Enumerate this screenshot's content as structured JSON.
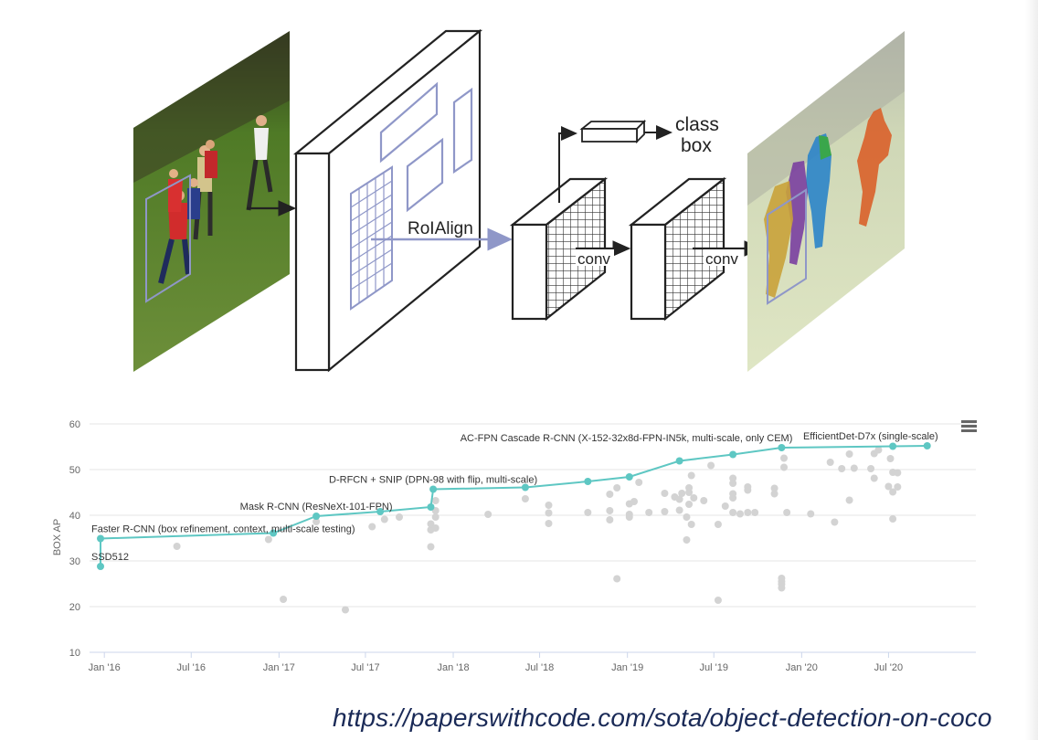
{
  "diagram": {
    "label_roialign": "RoIAlign",
    "label_conv_1": "conv",
    "label_conv_2": "conv",
    "label_class": "class",
    "label_box": "box"
  },
  "chart_data": {
    "type": "scatter",
    "ylabel": "BOX AP",
    "ylim": [
      10,
      60
    ],
    "yticks": [
      "10",
      "20",
      "30",
      "40",
      "50",
      "60"
    ],
    "xlim": [
      "2015-12-01",
      "2020-12-31"
    ],
    "xticks": [
      {
        "date": "2016-01-01",
        "label": "Jan '16"
      },
      {
        "date": "2016-07-01",
        "label": "Jul '16"
      },
      {
        "date": "2017-01-01",
        "label": "Jan '17"
      },
      {
        "date": "2017-07-01",
        "label": "Jul '17"
      },
      {
        "date": "2018-01-01",
        "label": "Jan '18"
      },
      {
        "date": "2018-07-01",
        "label": "Jul '18"
      },
      {
        "date": "2019-01-01",
        "label": "Jan '19"
      },
      {
        "date": "2019-07-01",
        "label": "Jul '19"
      },
      {
        "date": "2020-01-01",
        "label": "Jan '20"
      },
      {
        "date": "2020-07-01",
        "label": "Jul '20"
      }
    ],
    "grid": true,
    "sota_color": "#5ec7c3",
    "other_color": "#d3d3d3",
    "sota": [
      {
        "date": "2015-12-24",
        "value": 28.8
      },
      {
        "date": "2015-12-24",
        "value": 34.9
      },
      {
        "date": "2016-12-20",
        "value": 36.1
      },
      {
        "date": "2017-03-20",
        "value": 39.8
      },
      {
        "date": "2017-08-01",
        "value": 40.8
      },
      {
        "date": "2017-11-15",
        "value": 41.8
      },
      {
        "date": "2017-11-20",
        "value": 45.7
      },
      {
        "date": "2018-06-01",
        "value": 46.1
      },
      {
        "date": "2018-10-10",
        "value": 47.4
      },
      {
        "date": "2019-01-05",
        "value": 48.4
      },
      {
        "date": "2019-04-20",
        "value": 51.9
      },
      {
        "date": "2019-08-10",
        "value": 53.3
      },
      {
        "date": "2019-11-20",
        "value": 54.8
      },
      {
        "date": "2020-07-10",
        "value": 55.1
      },
      {
        "date": "2020-09-20",
        "value": 55.2
      }
    ],
    "annotations": [
      {
        "date": "2015-12-24",
        "value": 28.8,
        "text": "SSD512",
        "align": "start"
      },
      {
        "date": "2015-12-24",
        "value": 34.9,
        "text": "Faster R-CNN (box refinement, context, multi-scale testing)",
        "align": "start"
      },
      {
        "date": "2017-03-20",
        "value": 39.8,
        "text": "Mask R-CNN (ResNeXt-101-FPN)",
        "align": "middle"
      },
      {
        "date": "2017-11-20",
        "value": 45.7,
        "text": "D-RFCN + SNIP (DPN-98 with flip, multi-scale)",
        "align": "middle"
      },
      {
        "date": "2019-11-20",
        "value": 54.8,
        "text": "AC-FPN Cascade R-CNN (X-152-32x8d-FPN-IN5k, multi-scale, only CEM)",
        "align": "end"
      },
      {
        "date": "2020-09-20",
        "value": 55.2,
        "text": "EfficientDet-D7x (single-scale)",
        "align": "end"
      }
    ],
    "others": [
      {
        "date": "2016-06-01",
        "value": 33.2
      },
      {
        "date": "2016-12-10",
        "value": 34.7
      },
      {
        "date": "2017-01-10",
        "value": 21.6
      },
      {
        "date": "2017-05-20",
        "value": 19.3
      },
      {
        "date": "2017-03-20",
        "value": 38.6
      },
      {
        "date": "2017-07-15",
        "value": 37.5
      },
      {
        "date": "2017-08-10",
        "value": 39.1
      },
      {
        "date": "2017-09-10",
        "value": 39.6
      },
      {
        "date": "2017-11-15",
        "value": 33.1
      },
      {
        "date": "2017-11-15",
        "value": 36.8
      },
      {
        "date": "2017-11-15",
        "value": 38.1
      },
      {
        "date": "2017-11-25",
        "value": 37.2
      },
      {
        "date": "2017-11-25",
        "value": 39.6
      },
      {
        "date": "2017-11-25",
        "value": 41.0
      },
      {
        "date": "2017-11-25",
        "value": 43.2
      },
      {
        "date": "2018-03-15",
        "value": 40.2
      },
      {
        "date": "2018-06-01",
        "value": 43.6
      },
      {
        "date": "2018-07-20",
        "value": 38.2
      },
      {
        "date": "2018-07-20",
        "value": 40.5
      },
      {
        "date": "2018-07-20",
        "value": 42.2
      },
      {
        "date": "2018-10-10",
        "value": 40.6
      },
      {
        "date": "2018-11-25",
        "value": 39.0
      },
      {
        "date": "2018-11-25",
        "value": 41.0
      },
      {
        "date": "2018-11-25",
        "value": 44.6
      },
      {
        "date": "2018-12-10",
        "value": 26.1
      },
      {
        "date": "2018-12-10",
        "value": 46.0
      },
      {
        "date": "2019-01-05",
        "value": 39.6
      },
      {
        "date": "2019-01-05",
        "value": 40.2
      },
      {
        "date": "2019-01-05",
        "value": 42.5
      },
      {
        "date": "2019-01-15",
        "value": 43.0
      },
      {
        "date": "2019-01-25",
        "value": 47.2
      },
      {
        "date": "2019-02-15",
        "value": 40.6
      },
      {
        "date": "2019-03-20",
        "value": 40.8
      },
      {
        "date": "2019-03-20",
        "value": 44.8
      },
      {
        "date": "2019-04-10",
        "value": 44.0
      },
      {
        "date": "2019-04-20",
        "value": 41.1
      },
      {
        "date": "2019-04-20",
        "value": 43.5
      },
      {
        "date": "2019-04-25",
        "value": 44.8
      },
      {
        "date": "2019-05-05",
        "value": 34.6
      },
      {
        "date": "2019-05-05",
        "value": 39.6
      },
      {
        "date": "2019-05-10",
        "value": 42.4
      },
      {
        "date": "2019-05-10",
        "value": 45.0
      },
      {
        "date": "2019-05-10",
        "value": 46.0
      },
      {
        "date": "2019-05-15",
        "value": 38.0
      },
      {
        "date": "2019-05-15",
        "value": 48.7
      },
      {
        "date": "2019-05-20",
        "value": 43.8
      },
      {
        "date": "2019-06-10",
        "value": 43.2
      },
      {
        "date": "2019-06-25",
        "value": 50.9
      },
      {
        "date": "2019-07-10",
        "value": 21.4
      },
      {
        "date": "2019-07-10",
        "value": 38.0
      },
      {
        "date": "2019-07-25",
        "value": 42.0
      },
      {
        "date": "2019-08-10",
        "value": 40.6
      },
      {
        "date": "2019-08-10",
        "value": 43.8
      },
      {
        "date": "2019-08-10",
        "value": 44.7
      },
      {
        "date": "2019-08-10",
        "value": 47.0
      },
      {
        "date": "2019-08-10",
        "value": 48.1
      },
      {
        "date": "2019-08-25",
        "value": 40.3
      },
      {
        "date": "2019-09-10",
        "value": 40.6
      },
      {
        "date": "2019-09-10",
        "value": 45.5
      },
      {
        "date": "2019-09-10",
        "value": 46.2
      },
      {
        "date": "2019-09-25",
        "value": 40.6
      },
      {
        "date": "2019-11-05",
        "value": 44.7
      },
      {
        "date": "2019-11-05",
        "value": 45.9
      },
      {
        "date": "2019-11-20",
        "value": 24.1
      },
      {
        "date": "2019-11-20",
        "value": 24.9
      },
      {
        "date": "2019-11-20",
        "value": 25.5
      },
      {
        "date": "2019-11-20",
        "value": 26.2
      },
      {
        "date": "2019-11-25",
        "value": 50.5
      },
      {
        "date": "2019-11-25",
        "value": 52.5
      },
      {
        "date": "2019-12-01",
        "value": 40.6
      },
      {
        "date": "2020-01-20",
        "value": 40.3
      },
      {
        "date": "2020-03-01",
        "value": 51.6
      },
      {
        "date": "2020-03-10",
        "value": 38.5
      },
      {
        "date": "2020-03-25",
        "value": 50.2
      },
      {
        "date": "2020-04-10",
        "value": 43.3
      },
      {
        "date": "2020-04-10",
        "value": 53.4
      },
      {
        "date": "2020-04-20",
        "value": 50.3
      },
      {
        "date": "2020-05-25",
        "value": 50.2
      },
      {
        "date": "2020-06-01",
        "value": 48.1
      },
      {
        "date": "2020-06-01",
        "value": 53.5
      },
      {
        "date": "2020-06-10",
        "value": 54.3
      },
      {
        "date": "2020-07-01",
        "value": 46.3
      },
      {
        "date": "2020-07-05",
        "value": 52.4
      },
      {
        "date": "2020-07-10",
        "value": 39.2
      },
      {
        "date": "2020-07-10",
        "value": 45.1
      },
      {
        "date": "2020-07-10",
        "value": 49.4
      },
      {
        "date": "2020-07-20",
        "value": 46.2
      },
      {
        "date": "2020-07-20",
        "value": 49.3
      }
    ]
  },
  "source_url": "https://paperswithcode.com/sota/object-detection-on-coco"
}
